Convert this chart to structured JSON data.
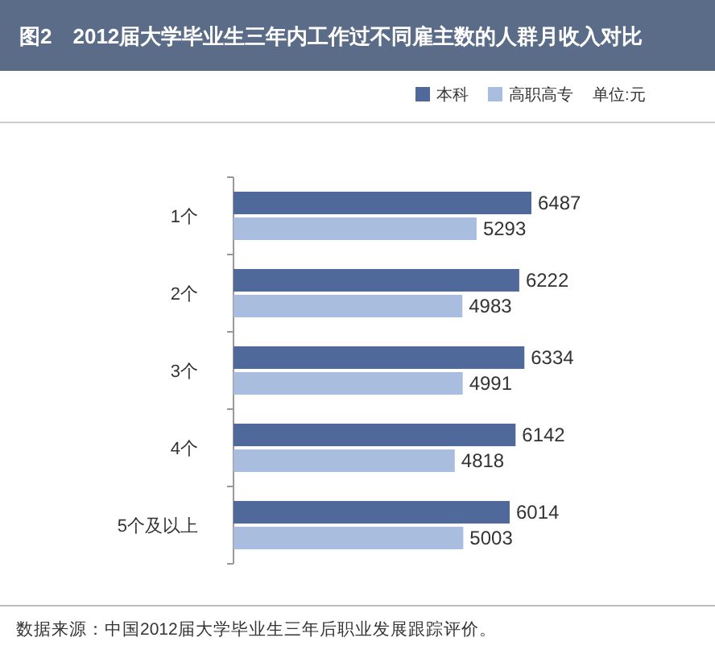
{
  "chart_data": {
    "type": "bar",
    "orientation": "horizontal",
    "title": "图2　2012届大学毕业生三年内工作过不同雇主数的人群月收入对比",
    "categories": [
      "1个",
      "2个",
      "3个",
      "4个",
      "5个及以上"
    ],
    "series": [
      {
        "name": "本科",
        "color": "#4f6a9a",
        "values": [
          6487,
          6222,
          6334,
          6142,
          6014
        ]
      },
      {
        "name": "高职高专",
        "color": "#a9bddf",
        "values": [
          5293,
          4983,
          4991,
          4818,
          5003
        ]
      }
    ],
    "data_labels": true,
    "legend": "top right",
    "annotations": [
      "单位:元",
      "数据来源：中国2012届大学毕业生三年后职业发展跟踪评价。"
    ]
  }
}
